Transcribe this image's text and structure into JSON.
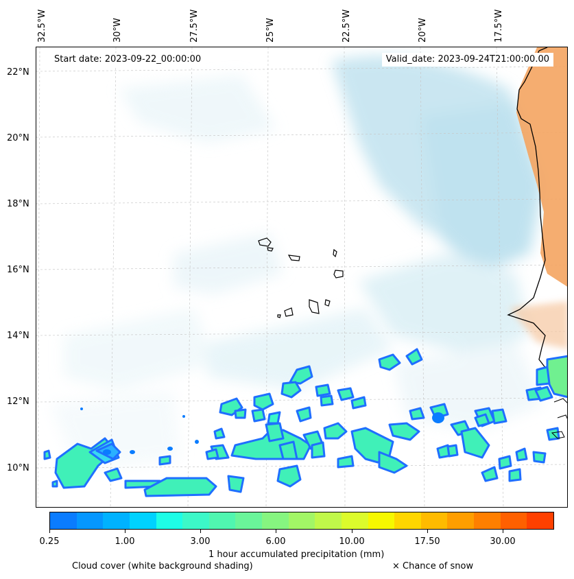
{
  "map": {
    "start_date_text": "Start date: 2023-09-22_00:00:00",
    "valid_date_text": "Valid_date: 2023-09-24T21:00:00.00",
    "longitude_labels": [
      "32.5°W",
      "30°W",
      "27.5°W",
      "25°W",
      "22.5°W",
      "20°W",
      "17.5°W"
    ],
    "latitude_labels": [
      "22°N",
      "20°N",
      "18°N",
      "16°N",
      "14°N",
      "12°N",
      "10°N"
    ],
    "extent": {
      "lon_min": -33.0,
      "lon_max": -15.6,
      "lat_min": 8.9,
      "lat_max": 22.8
    }
  },
  "colorbar": {
    "colors": [
      "#0a7cff",
      "#0597ff",
      "#00b2ff",
      "#00d2ff",
      "#1efde6",
      "#3cf8c8",
      "#50f6b0",
      "#6af59a",
      "#86f580",
      "#a2f666",
      "#c0f84a",
      "#dcfb2c",
      "#f6f800",
      "#ffd600",
      "#ffbb00",
      "#ff9e00",
      "#ff7f00",
      "#ff6000",
      "#ff4000"
    ],
    "tick_labels": [
      "0.25",
      "1.00",
      "3.00",
      "6.00",
      "10.00",
      "17.50",
      "30.00"
    ],
    "label": "1 hour accumulated precipitation (mm)"
  },
  "legend": {
    "cloud_cover_text": "Cloud cover (white background shading)",
    "snow_text": "× Chance of snow"
  },
  "colors": {
    "cloud": "#a8d8e8",
    "heat_land": "#f4a460",
    "precip_outline": "#1f6fff",
    "precip_fill": "#40f0b8"
  }
}
